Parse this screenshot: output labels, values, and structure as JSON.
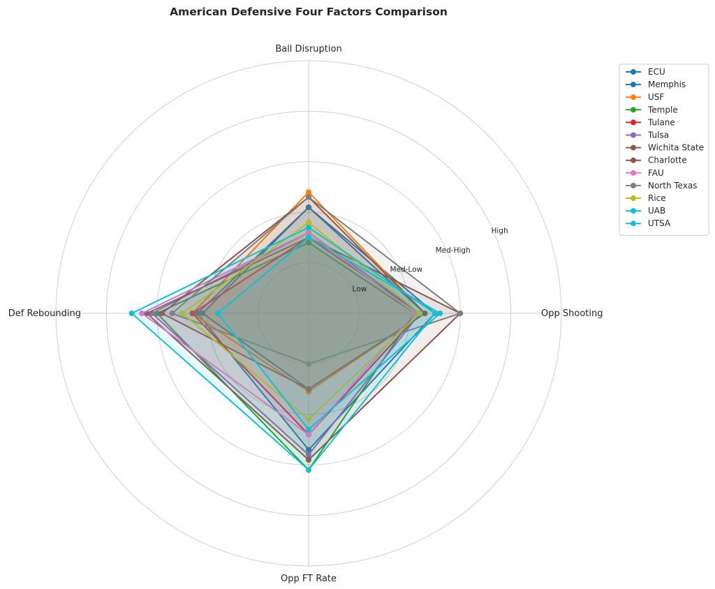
{
  "chart_data": {
    "type": "radar",
    "title": "American Defensive Four Factors Comparison",
    "axes": [
      "Ball Disruption",
      "Opp Shooting",
      "Opp FT Rate",
      "Def Rebounding"
    ],
    "rings": [
      "Low",
      "Med-Low",
      "Med-High",
      "High"
    ],
    "rmax": 5,
    "grid": true,
    "legend_position": "upper-right-outside",
    "series": [
      {
        "name": "ECU",
        "color": "#1f77b4",
        "values": [
          2.1,
          2.3,
          1.5,
          2.1
        ]
      },
      {
        "name": "Memphis",
        "color": "#1f77b4",
        "values": [
          2.1,
          2.5,
          2.7,
          2.2
        ]
      },
      {
        "name": "USF",
        "color": "#ff7f0e",
        "values": [
          2.4,
          2.3,
          1.55,
          2.3
        ]
      },
      {
        "name": "Temple",
        "color": "#2ca02c",
        "values": [
          1.4,
          2.1,
          3.1,
          3.0
        ]
      },
      {
        "name": "Tulane",
        "color": "#d62728",
        "values": [
          1.5,
          2.2,
          2.4,
          2.3
        ]
      },
      {
        "name": "Tulsa",
        "color": "#9467bd",
        "values": [
          1.6,
          2.2,
          2.8,
          3.1
        ]
      },
      {
        "name": "Wichita State",
        "color": "#8c564b",
        "values": [
          1.5,
          3.0,
          2.9,
          3.2
        ]
      },
      {
        "name": "Charlotte",
        "color": "#8c564b",
        "values": [
          2.3,
          2.3,
          1.5,
          2.9
        ]
      },
      {
        "name": "FAU",
        "color": "#e377c2",
        "values": [
          1.6,
          2.1,
          2.4,
          3.3
        ]
      },
      {
        "name": "North Texas",
        "color": "#7f7f7f",
        "values": [
          2.3,
          3.0,
          1.0,
          2.7
        ]
      },
      {
        "name": "Rice",
        "color": "#bcbd22",
        "values": [
          1.8,
          2.2,
          2.1,
          2.5
        ]
      },
      {
        "name": "UAB",
        "color": "#17becf",
        "values": [
          1.5,
          2.6,
          2.3,
          1.8
        ]
      },
      {
        "name": "UTSA",
        "color": "#17becf",
        "values": [
          1.7,
          2.5,
          3.1,
          3.5
        ]
      }
    ]
  }
}
